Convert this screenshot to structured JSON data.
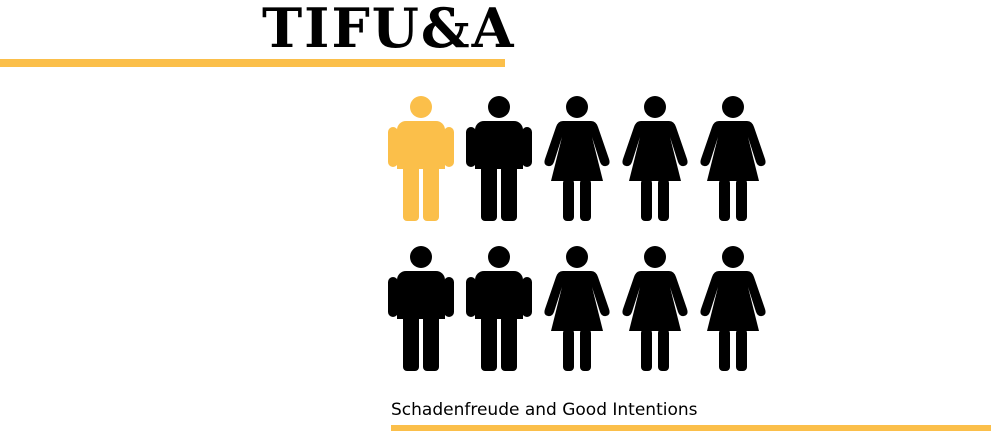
{
  "header": {
    "title": "TIFU&A"
  },
  "footer": {
    "subtitle": "Schadenfreude and Good Intentions"
  },
  "colors": {
    "highlight": "#fbbf4a",
    "default": "#000000",
    "background": "#ffffff"
  },
  "people": [
    {
      "type": "male",
      "highlighted": true
    },
    {
      "type": "male",
      "highlighted": false
    },
    {
      "type": "female",
      "highlighted": false
    },
    {
      "type": "female",
      "highlighted": false
    },
    {
      "type": "female",
      "highlighted": false
    },
    {
      "type": "male",
      "highlighted": false
    },
    {
      "type": "male",
      "highlighted": false
    },
    {
      "type": "female",
      "highlighted": false
    },
    {
      "type": "female",
      "highlighted": false
    },
    {
      "type": "female",
      "highlighted": false
    }
  ]
}
